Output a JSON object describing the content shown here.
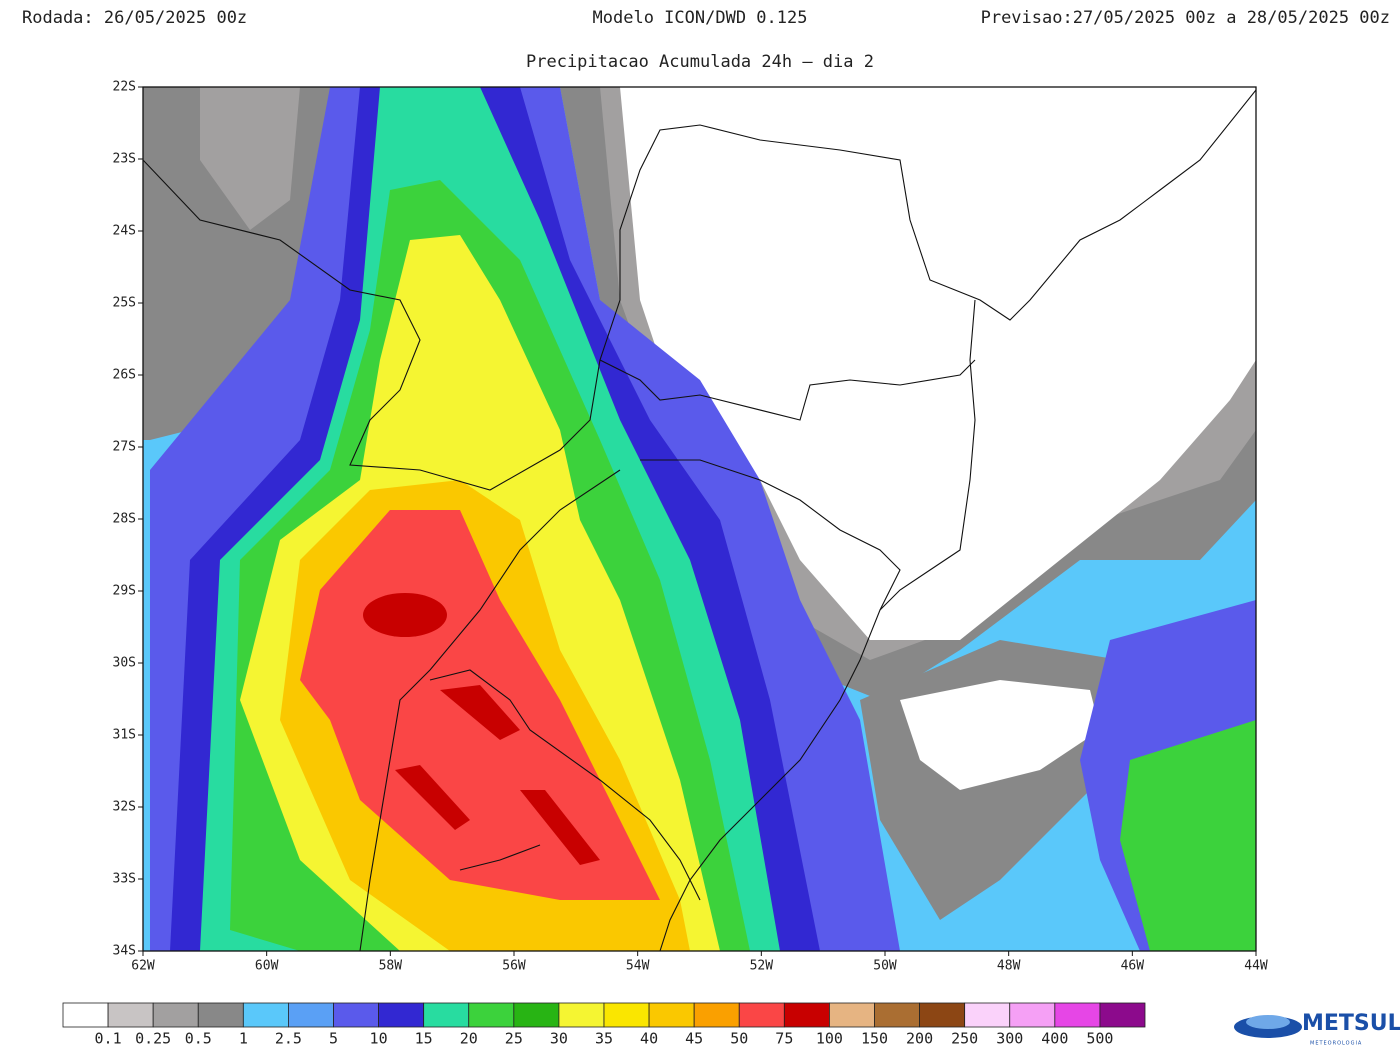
{
  "header": {
    "run": "Rodada: 26/05/2025 00z",
    "model": "Modelo ICON/DWD 0.125",
    "forecast": "Previsao:27/05/2025 00z a 28/05/2025 00z",
    "subtitle": "Precipitacao Acumulada 24h – dia 2"
  },
  "map": {
    "lat_ticks": [
      "22S",
      "23S",
      "24S",
      "25S",
      "26S",
      "27S",
      "28S",
      "29S",
      "30S",
      "31S",
      "32S",
      "33S",
      "34S"
    ],
    "lon_ticks": [
      "62W",
      "60W",
      "58W",
      "56W",
      "54W",
      "52W",
      "50W",
      "48W",
      "46W",
      "44W"
    ]
  },
  "colorbar": {
    "colors": [
      "#ffffff",
      "#c8c4c4",
      "#a2a0a0",
      "#888888",
      "#5ac8fa",
      "#5aa0f5",
      "#5a5aeb",
      "#3228d2",
      "#28dca0",
      "#3cd23c",
      "#28b414",
      "#f5f532",
      "#fae600",
      "#fac800",
      "#faa000",
      "#fa4646",
      "#c80000",
      "#e6b482",
      "#aa6e32",
      "#8c4614",
      "#fad2fa",
      "#f5a0f5",
      "#e646e6",
      "#8c0a8c"
    ],
    "labels": [
      "0.1",
      "0.25",
      "0.5",
      "1",
      "2.5",
      "5",
      "10",
      "15",
      "20",
      "25",
      "30",
      "35",
      "40",
      "45",
      "50",
      "75",
      "100",
      "150",
      "200",
      "250",
      "300",
      "400",
      "500"
    ]
  },
  "logo": {
    "name": "METSUL",
    "tagline": "METEOROLOGIA"
  }
}
